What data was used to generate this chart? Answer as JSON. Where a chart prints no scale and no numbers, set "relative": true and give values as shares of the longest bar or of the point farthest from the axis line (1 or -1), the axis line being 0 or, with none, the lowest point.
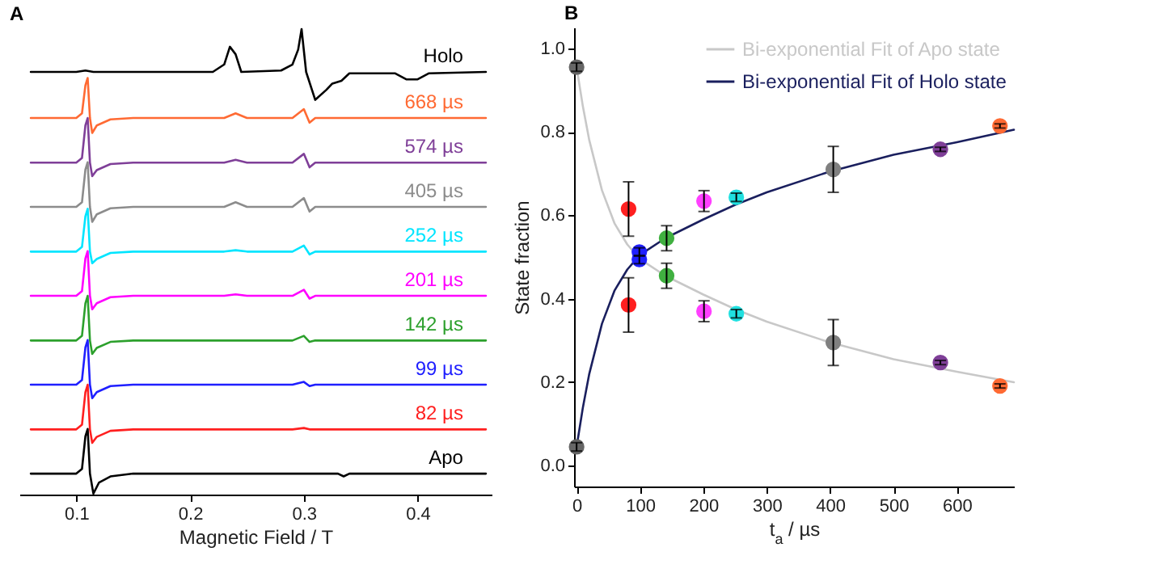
{
  "chart_data": [
    {
      "type": "line",
      "title": "A",
      "xlabel": "Magnetic Field / T",
      "relative": true,
      "legend": false,
      "xlim": [
        0.05,
        0.465
      ],
      "xticks": [
        0.1,
        0.2,
        0.3,
        0.4
      ],
      "series": [
        {
          "name": "Holo",
          "color": "#000000",
          "x": [
            0.06,
            0.1,
            0.108,
            0.115,
            0.22,
            0.23,
            0.235,
            0.24,
            0.245,
            0.28,
            0.29,
            0.295,
            0.298,
            0.302,
            0.31,
            0.32,
            0.325,
            0.333,
            0.34,
            0.38,
            0.39,
            0.4,
            0.41,
            0.46
          ],
          "values": [
            0.908,
            0.908,
            0.911,
            0.908,
            0.908,
            0.924,
            0.962,
            0.946,
            0.908,
            0.911,
            0.924,
            0.956,
            1.0,
            0.908,
            0.848,
            0.87,
            0.883,
            0.889,
            0.905,
            0.905,
            0.892,
            0.892,
            0.905,
            0.908
          ]
        },
        {
          "name": "668 µs",
          "color": "#ff6a33",
          "x": [
            0.06,
            0.1,
            0.105,
            0.108,
            0.11,
            0.112,
            0.114,
            0.118,
            0.13,
            0.15,
            0.23,
            0.24,
            0.25,
            0.29,
            0.3,
            0.305,
            0.31,
            0.46
          ],
          "values": [
            0.809,
            0.809,
            0.819,
            0.879,
            0.895,
            0.809,
            0.777,
            0.793,
            0.806,
            0.809,
            0.809,
            0.819,
            0.809,
            0.809,
            0.828,
            0.799,
            0.809,
            0.809
          ]
        },
        {
          "name": "574 µs",
          "color": "#7f3f98",
          "x": [
            0.06,
            0.1,
            0.105,
            0.108,
            0.11,
            0.112,
            0.114,
            0.118,
            0.13,
            0.15,
            0.23,
            0.24,
            0.25,
            0.29,
            0.3,
            0.305,
            0.31,
            0.46
          ],
          "values": [
            0.713,
            0.713,
            0.723,
            0.793,
            0.809,
            0.713,
            0.684,
            0.697,
            0.71,
            0.713,
            0.713,
            0.719,
            0.713,
            0.713,
            0.732,
            0.703,
            0.713,
            0.713
          ]
        },
        {
          "name": "405 µs",
          "color": "#8c8c8c",
          "x": [
            0.06,
            0.1,
            0.105,
            0.108,
            0.11,
            0.112,
            0.114,
            0.118,
            0.13,
            0.15,
            0.23,
            0.24,
            0.25,
            0.29,
            0.3,
            0.305,
            0.31,
            0.46
          ],
          "values": [
            0.618,
            0.618,
            0.628,
            0.698,
            0.714,
            0.618,
            0.586,
            0.602,
            0.615,
            0.618,
            0.618,
            0.628,
            0.618,
            0.618,
            0.637,
            0.608,
            0.618,
            0.618
          ]
        },
        {
          "name": "252 µs",
          "color": "#00e5ff",
          "x": [
            0.06,
            0.1,
            0.105,
            0.108,
            0.11,
            0.112,
            0.114,
            0.118,
            0.13,
            0.15,
            0.23,
            0.24,
            0.25,
            0.29,
            0.3,
            0.305,
            0.31,
            0.46
          ],
          "values": [
            0.522,
            0.522,
            0.532,
            0.598,
            0.614,
            0.522,
            0.497,
            0.506,
            0.519,
            0.522,
            0.522,
            0.525,
            0.522,
            0.522,
            0.535,
            0.516,
            0.522,
            0.522
          ]
        },
        {
          "name": "201 µs",
          "color": "#ff00ff",
          "x": [
            0.06,
            0.1,
            0.105,
            0.108,
            0.11,
            0.112,
            0.114,
            0.118,
            0.13,
            0.15,
            0.23,
            0.24,
            0.25,
            0.29,
            0.3,
            0.305,
            0.31,
            0.46
          ],
          "values": [
            0.427,
            0.427,
            0.437,
            0.507,
            0.523,
            0.427,
            0.398,
            0.411,
            0.424,
            0.427,
            0.427,
            0.43,
            0.427,
            0.427,
            0.44,
            0.421,
            0.427,
            0.427
          ]
        },
        {
          "name": "142 µs",
          "color": "#2ca02c",
          "x": [
            0.06,
            0.1,
            0.105,
            0.108,
            0.11,
            0.112,
            0.114,
            0.118,
            0.13,
            0.15,
            0.23,
            0.24,
            0.25,
            0.29,
            0.3,
            0.305,
            0.31,
            0.46
          ],
          "values": [
            0.331,
            0.331,
            0.341,
            0.411,
            0.427,
            0.331,
            0.302,
            0.315,
            0.328,
            0.331,
            0.331,
            0.331,
            0.331,
            0.331,
            0.341,
            0.328,
            0.331,
            0.331
          ]
        },
        {
          "name": "99 µs",
          "color": "#1f1fff",
          "x": [
            0.06,
            0.1,
            0.105,
            0.108,
            0.11,
            0.112,
            0.114,
            0.118,
            0.13,
            0.15,
            0.23,
            0.24,
            0.25,
            0.29,
            0.3,
            0.305,
            0.31,
            0.46
          ],
          "values": [
            0.236,
            0.236,
            0.246,
            0.316,
            0.332,
            0.236,
            0.207,
            0.22,
            0.233,
            0.236,
            0.236,
            0.236,
            0.236,
            0.236,
            0.242,
            0.233,
            0.236,
            0.236
          ]
        },
        {
          "name": "82 µs",
          "color": "#ff1f1f",
          "x": [
            0.06,
            0.1,
            0.105,
            0.108,
            0.11,
            0.112,
            0.114,
            0.118,
            0.13,
            0.15,
            0.23,
            0.24,
            0.25,
            0.29,
            0.3,
            0.305,
            0.31,
            0.46
          ],
          "values": [
            0.14,
            0.14,
            0.15,
            0.22,
            0.236,
            0.14,
            0.111,
            0.124,
            0.137,
            0.14,
            0.14,
            0.14,
            0.14,
            0.14,
            0.143,
            0.14,
            0.14,
            0.14
          ]
        },
        {
          "name": "Apo",
          "color": "#000000",
          "x": [
            0.06,
            0.1,
            0.105,
            0.108,
            0.11,
            0.112,
            0.115,
            0.12,
            0.13,
            0.15,
            0.33,
            0.335,
            0.34,
            0.46
          ],
          "values": [
            0.045,
            0.045,
            0.055,
            0.125,
            0.141,
            0.045,
            0.002,
            0.026,
            0.039,
            0.045,
            0.045,
            0.039,
            0.045,
            0.045
          ]
        }
      ]
    },
    {
      "type": "scatter",
      "title": "B",
      "xlabel": "t$_{a}$ / µs",
      "ylabel": "State fraction",
      "legend": "top right",
      "xlim": [
        -4,
        690
      ],
      "xticks": [
        0,
        100,
        200,
        300,
        400,
        500,
        600
      ],
      "ylim": [
        -0.05,
        1.05
      ],
      "yticks": [
        {
          "value": 0,
          "label": "0.0"
        },
        0.2,
        0.4,
        0.6,
        0.8,
        {
          "value": 1,
          "label": "1.0"
        }
      ],
      "x": [
        0,
        82,
        99,
        142,
        201,
        252,
        405,
        574,
        668
      ],
      "series": [
        {
          "name": "Bi-exponential Fit of Apo state",
          "type": "line",
          "color": "#c8c8c8",
          "x": [
            0,
            10,
            20,
            40,
            60,
            80,
            100,
            140,
            200,
            250,
            300,
            400,
            500,
            600,
            690
          ],
          "values": [
            0.955,
            0.86,
            0.78,
            0.66,
            0.58,
            0.53,
            0.495,
            0.455,
            0.41,
            0.375,
            0.345,
            0.295,
            0.255,
            0.225,
            0.2
          ]
        },
        {
          "name": "Bi-exponential Fit of Holo state",
          "type": "line",
          "color": "#1a1f5e",
          "x": [
            0,
            10,
            20,
            40,
            60,
            80,
            100,
            140,
            200,
            250,
            300,
            400,
            500,
            600,
            690
          ],
          "values": [
            0.045,
            0.14,
            0.22,
            0.34,
            0.42,
            0.47,
            0.505,
            0.545,
            0.59,
            0.625,
            0.655,
            0.705,
            0.745,
            0.775,
            0.805
          ]
        },
        {
          "marker": "circle",
          "colors": [
            "#666666",
            "#ff2020",
            "#2020ff",
            "#40b040",
            "#ff40ff",
            "#20e0e0",
            "#808080",
            "#7f3f98",
            "#ff6a33"
          ],
          "values": [
            0.955,
            0.615,
            0.494,
            0.455,
            0.37,
            0.364,
            0.295,
            0.247,
            0.191
          ],
          "errors": [
            0.01,
            0.065,
            0.01,
            0.03,
            0.025,
            0.01,
            0.055,
            0.005,
            0.005
          ]
        },
        {
          "marker": "circle",
          "colors": [
            "#666666",
            "#ff2020",
            "#2020ff",
            "#40b040",
            "#ff40ff",
            "#20e0e0",
            "#808080",
            "#7f3f98",
            "#ff6a33"
          ],
          "values": [
            0.045,
            0.385,
            0.512,
            0.545,
            0.634,
            0.643,
            0.71,
            0.758,
            0.814
          ],
          "errors": [
            0.01,
            0.065,
            0.01,
            0.03,
            0.025,
            0.01,
            0.055,
            0.005,
            0.005
          ]
        }
      ]
    }
  ]
}
